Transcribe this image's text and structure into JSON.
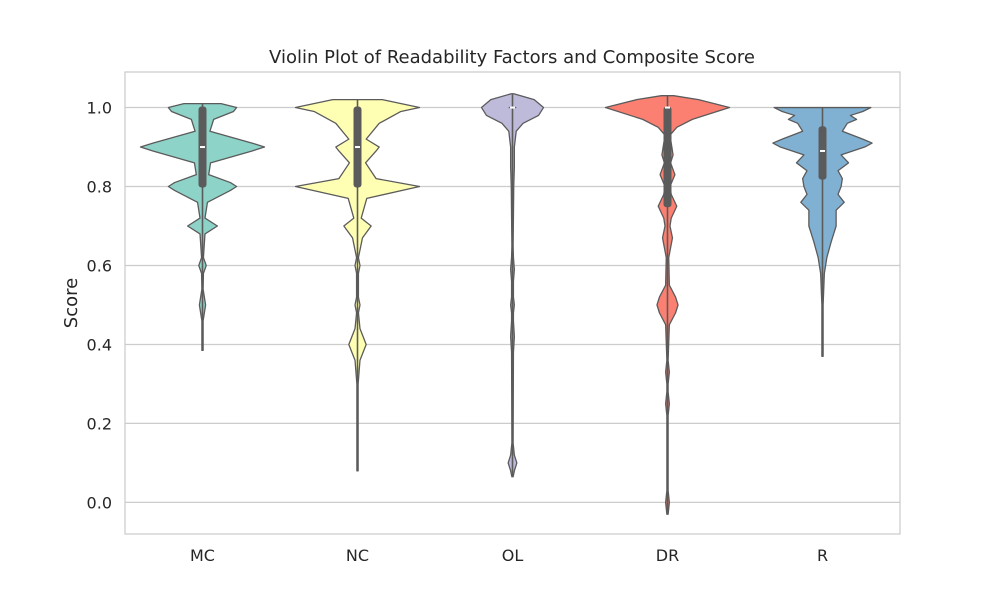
{
  "chart_data": {
    "type": "violin",
    "title": "Violin Plot of Readability Factors and Composite Score",
    "xlabel": "",
    "ylabel": "Score",
    "ylim": [
      -0.08,
      1.09
    ],
    "yticks": [
      "0.0",
      "0.2",
      "0.4",
      "0.6",
      "0.8",
      "1.0"
    ],
    "grid": "horizontal",
    "categories": [
      "MC",
      "NC",
      "OL",
      "DR",
      "R"
    ],
    "series": [
      {
        "category": "MC",
        "color": "#8dd3c7",
        "range": [
          0.385,
          1.01
        ],
        "median": 0.9,
        "q1": 0.8,
        "q3": 1.0,
        "density": [
          [
            0.385,
            0.01
          ],
          [
            0.46,
            0.01
          ],
          [
            0.5,
            0.05
          ],
          [
            0.54,
            0.01
          ],
          [
            0.58,
            0.015
          ],
          [
            0.6,
            0.06
          ],
          [
            0.62,
            0.015
          ],
          [
            0.68,
            0.04
          ],
          [
            0.7,
            0.24
          ],
          [
            0.72,
            0.04
          ],
          [
            0.76,
            0.08
          ],
          [
            0.79,
            0.45
          ],
          [
            0.8,
            0.55
          ],
          [
            0.81,
            0.45
          ],
          [
            0.83,
            0.1
          ],
          [
            0.86,
            0.13
          ],
          [
            0.89,
            0.8
          ],
          [
            0.9,
            1.0
          ],
          [
            0.91,
            0.8
          ],
          [
            0.94,
            0.12
          ],
          [
            0.97,
            0.18
          ],
          [
            0.99,
            0.5
          ],
          [
            1.0,
            0.55
          ],
          [
            1.01,
            0.3
          ]
        ]
      },
      {
        "category": "NC",
        "color": "#ffffb3",
        "range": [
          0.08,
          1.02
        ],
        "median": 0.9,
        "q1": 0.8,
        "q3": 1.0,
        "density": [
          [
            0.08,
            0.01
          ],
          [
            0.3,
            0.01
          ],
          [
            0.36,
            0.04
          ],
          [
            0.4,
            0.14
          ],
          [
            0.44,
            0.04
          ],
          [
            0.48,
            0.015
          ],
          [
            0.5,
            0.04
          ],
          [
            0.52,
            0.015
          ],
          [
            0.58,
            0.015
          ],
          [
            0.6,
            0.04
          ],
          [
            0.62,
            0.015
          ],
          [
            0.67,
            0.08
          ],
          [
            0.7,
            0.22
          ],
          [
            0.72,
            0.06
          ],
          [
            0.77,
            0.15
          ],
          [
            0.8,
            1.0
          ],
          [
            0.82,
            0.3
          ],
          [
            0.86,
            0.13
          ],
          [
            0.89,
            0.3
          ],
          [
            0.9,
            0.35
          ],
          [
            0.92,
            0.14
          ],
          [
            0.96,
            0.35
          ],
          [
            0.99,
            0.7
          ],
          [
            1.0,
            1.0
          ],
          [
            1.02,
            0.4
          ]
        ]
      },
      {
        "category": "OL",
        "color": "#bebada",
        "range": [
          0.065,
          1.035
        ],
        "median": 1.0,
        "q1": 1.0,
        "q3": 1.0,
        "density": [
          [
            0.065,
            0.01
          ],
          [
            0.08,
            0.03
          ],
          [
            0.1,
            0.07
          ],
          [
            0.12,
            0.03
          ],
          [
            0.15,
            0.01
          ],
          [
            0.38,
            0.015
          ],
          [
            0.42,
            0.03
          ],
          [
            0.46,
            0.015
          ],
          [
            0.48,
            0.015
          ],
          [
            0.5,
            0.03
          ],
          [
            0.52,
            0.015
          ],
          [
            0.56,
            0.015
          ],
          [
            0.59,
            0.03
          ],
          [
            0.62,
            0.015
          ],
          [
            0.65,
            0.01
          ],
          [
            0.8,
            0.02
          ],
          [
            0.85,
            0.03
          ],
          [
            0.9,
            0.03
          ],
          [
            0.94,
            0.06
          ],
          [
            0.96,
            0.17
          ],
          [
            0.98,
            0.42
          ],
          [
            1.0,
            0.5
          ],
          [
            1.02,
            0.35
          ],
          [
            1.035,
            0.02
          ]
        ]
      },
      {
        "category": "DR",
        "color": "#fb8072",
        "range": [
          -0.03,
          1.03
        ],
        "median": 1.0,
        "q1": 0.75,
        "q3": 1.0,
        "density": [
          [
            -0.03,
            0.01
          ],
          [
            0.0,
            0.03
          ],
          [
            0.03,
            0.01
          ],
          [
            0.22,
            0.01
          ],
          [
            0.25,
            0.03
          ],
          [
            0.28,
            0.01
          ],
          [
            0.3,
            0.01
          ],
          [
            0.33,
            0.03
          ],
          [
            0.36,
            0.01
          ],
          [
            0.45,
            0.03
          ],
          [
            0.48,
            0.13
          ],
          [
            0.5,
            0.17
          ],
          [
            0.52,
            0.13
          ],
          [
            0.55,
            0.03
          ],
          [
            0.62,
            0.02
          ],
          [
            0.67,
            0.08
          ],
          [
            0.7,
            0.04
          ],
          [
            0.72,
            0.06
          ],
          [
            0.75,
            0.15
          ],
          [
            0.78,
            0.06
          ],
          [
            0.8,
            0.04
          ],
          [
            0.83,
            0.12
          ],
          [
            0.86,
            0.05
          ],
          [
            0.88,
            0.09
          ],
          [
            0.9,
            0.07
          ],
          [
            0.93,
            0.04
          ],
          [
            0.95,
            0.15
          ],
          [
            0.97,
            0.4
          ],
          [
            1.0,
            1.0
          ],
          [
            1.02,
            0.5
          ],
          [
            1.03,
            0.1
          ]
        ]
      },
      {
        "category": "R",
        "color": "#80b1d3",
        "range": [
          0.37,
          1.0
        ],
        "median": 0.89,
        "q1": 0.82,
        "q3": 0.95,
        "density": [
          [
            0.37,
            0.01
          ],
          [
            0.5,
            0.01
          ],
          [
            0.58,
            0.03
          ],
          [
            0.62,
            0.07
          ],
          [
            0.66,
            0.14
          ],
          [
            0.7,
            0.22
          ],
          [
            0.74,
            0.22
          ],
          [
            0.76,
            0.35
          ],
          [
            0.78,
            0.25
          ],
          [
            0.8,
            0.3
          ],
          [
            0.82,
            0.32
          ],
          [
            0.84,
            0.25
          ],
          [
            0.86,
            0.42
          ],
          [
            0.88,
            0.3
          ],
          [
            0.9,
            0.68
          ],
          [
            0.91,
            0.8
          ],
          [
            0.92,
            0.65
          ],
          [
            0.94,
            0.32
          ],
          [
            0.96,
            0.4
          ],
          [
            0.97,
            0.55
          ],
          [
            0.98,
            0.45
          ],
          [
            0.99,
            0.65
          ],
          [
            1.0,
            0.78
          ]
        ]
      }
    ]
  }
}
